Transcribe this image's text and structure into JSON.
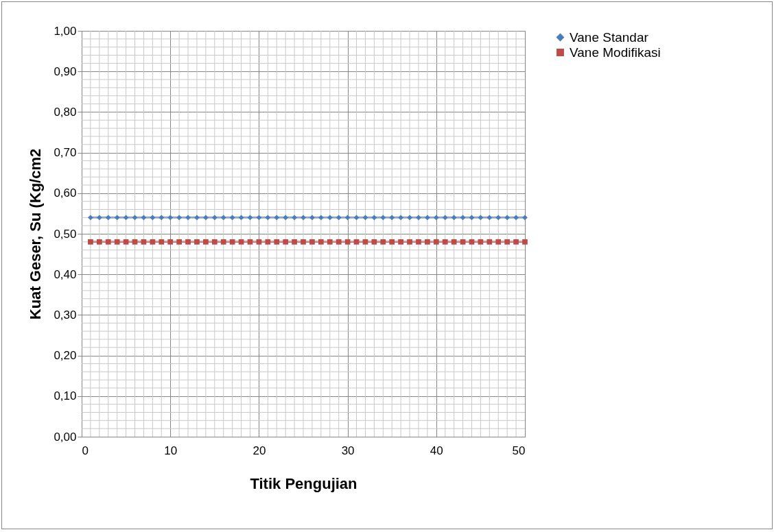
{
  "chart_data": {
    "type": "line",
    "xlabel": "Titik Pengujian",
    "ylabel": "Kuat Geser, Su (Kg/cm2",
    "x": [
      1,
      2,
      3,
      4,
      5,
      6,
      7,
      8,
      9,
      10,
      11,
      12,
      13,
      14,
      15,
      16,
      17,
      18,
      19,
      20,
      21,
      22,
      23,
      24,
      25,
      26,
      27,
      28,
      29,
      30,
      31,
      32,
      33,
      34,
      35,
      36,
      37,
      38,
      39,
      40,
      41,
      42,
      43,
      44,
      45,
      46,
      47,
      48,
      49,
      50
    ],
    "series": [
      {
        "name": "Vane Standar",
        "color": "#4a7ebb",
        "marker": "diamond",
        "values": [
          0.54,
          0.54,
          0.54,
          0.54,
          0.54,
          0.54,
          0.54,
          0.54,
          0.54,
          0.54,
          0.54,
          0.54,
          0.54,
          0.54,
          0.54,
          0.54,
          0.54,
          0.54,
          0.54,
          0.54,
          0.54,
          0.54,
          0.54,
          0.54,
          0.54,
          0.54,
          0.54,
          0.54,
          0.54,
          0.54,
          0.54,
          0.54,
          0.54,
          0.54,
          0.54,
          0.54,
          0.54,
          0.54,
          0.54,
          0.54,
          0.54,
          0.54,
          0.54,
          0.54,
          0.54,
          0.54,
          0.54,
          0.54,
          0.54,
          0.54
        ]
      },
      {
        "name": "Vane Modifikasi",
        "color": "#be4b48",
        "marker": "square",
        "values": [
          0.48,
          0.48,
          0.48,
          0.48,
          0.48,
          0.48,
          0.48,
          0.48,
          0.48,
          0.48,
          0.48,
          0.48,
          0.48,
          0.48,
          0.48,
          0.48,
          0.48,
          0.48,
          0.48,
          0.48,
          0.48,
          0.48,
          0.48,
          0.48,
          0.48,
          0.48,
          0.48,
          0.48,
          0.48,
          0.48,
          0.48,
          0.48,
          0.48,
          0.48,
          0.48,
          0.48,
          0.48,
          0.48,
          0.48,
          0.48,
          0.48,
          0.48,
          0.48,
          0.48,
          0.48,
          0.48,
          0.48,
          0.48,
          0.48,
          0.48
        ]
      }
    ],
    "xlim": [
      0,
      50
    ],
    "xticks": [
      0,
      10,
      20,
      30,
      40,
      50
    ],
    "ylim": [
      0,
      1
    ],
    "yticks": [
      {
        "value": 0,
        "label": "0,00"
      },
      {
        "value": 0.1,
        "label": "0,10"
      },
      {
        "value": 0.2,
        "label": "0,20"
      },
      {
        "value": 0.3,
        "label": "0,30"
      },
      {
        "value": 0.4,
        "label": "0,40"
      },
      {
        "value": 0.5,
        "label": "0,50"
      },
      {
        "value": 0.6,
        "label": "0,60"
      },
      {
        "value": 0.7,
        "label": "0,70"
      },
      {
        "value": 0.8,
        "label": "0,80"
      },
      {
        "value": 0.9,
        "label": "0,90"
      },
      {
        "value": 1,
        "label": "1,00"
      }
    ],
    "grid": true,
    "legend": "right",
    "line_style": "solid"
  }
}
